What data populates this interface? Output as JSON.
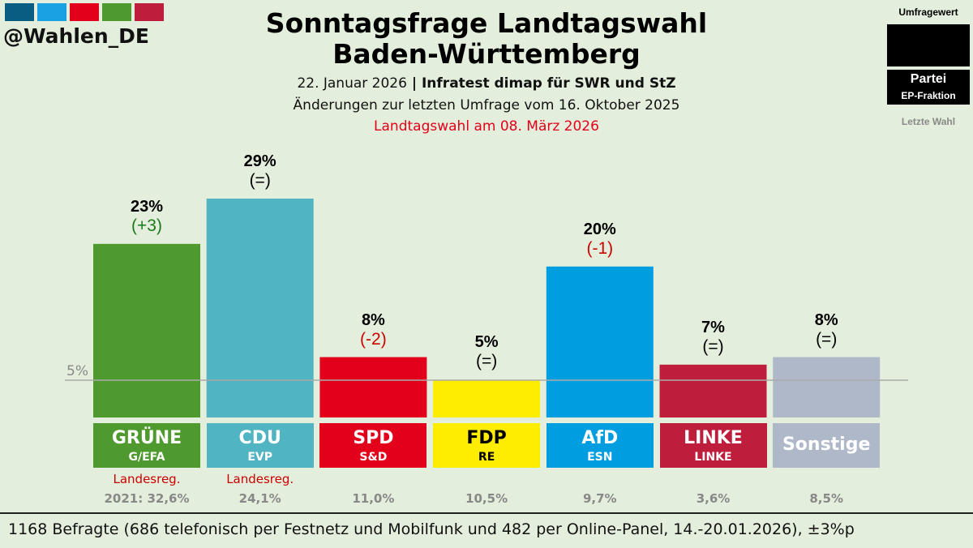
{
  "header": {
    "handle": "@Wahlen_DE",
    "logo_colors": [
      "#0a5d82",
      "#1aa1e3",
      "#e2001a",
      "#4e9a2e",
      "#be1e3c"
    ],
    "title_line1": "Sonntagsfrage Landtagswahl",
    "title_line2": "Baden-Württemberg",
    "date": "22. Januar 2026",
    "separator": " | ",
    "institute": "Infratest dimap für SWR und StZ",
    "changes_note": "Änderungen zur letzten Umfrage vom 16. Oktober 2025",
    "election_note": "Landtagswahl am 08. März 2026"
  },
  "legend": {
    "value_label": "Umfragewert",
    "party_label": "Partei",
    "group_label": "EP-Fraktion",
    "last_label": "Letzte Wahl"
  },
  "chart_data": {
    "type": "bar",
    "ylim": [
      0,
      30
    ],
    "threshold": 5,
    "threshold_label": "5%",
    "categories": [
      "GRÜNE",
      "CDU",
      "SPD",
      "FDP",
      "AfD",
      "LINKE",
      "Sonstige"
    ],
    "groups": [
      "G/EFA",
      "EVP",
      "S&D",
      "RE",
      "ESN",
      "LINKE",
      ""
    ],
    "values": [
      23,
      29,
      8,
      5,
      20,
      7,
      8
    ],
    "value_labels": [
      "23%",
      "29%",
      "8%",
      "5%",
      "20%",
      "7%",
      "8%"
    ],
    "changes": [
      "(+3)",
      "(=)",
      "(-2)",
      "(=)",
      "(-1)",
      "(=)",
      "(=)"
    ],
    "change_colors": [
      "#1a7a1a",
      "#000",
      "#c00",
      "#000",
      "#c00",
      "#000",
      "#000"
    ],
    "colors": [
      "#4e9a2e",
      "#50b4c2",
      "#e2001a",
      "#ffed00",
      "#009ee0",
      "#be1e3c",
      "#aeb8c8"
    ],
    "text_colors": [
      "#fff",
      "#fff",
      "#fff",
      "#000",
      "#fff",
      "#fff",
      "#fff"
    ],
    "government": [
      "Landesreg.",
      "Landesreg.",
      "",
      "",
      "",
      "",
      ""
    ],
    "last_election": [
      "2021: 32,6%",
      "24,1%",
      "11,0%",
      "10,5%",
      "9,7%",
      "3,6%",
      "8,5%"
    ]
  },
  "footer": {
    "text": "1168 Befragte (686 telefonisch per Festnetz und Mobilfunk und 482 per Online-Panel, 14.-20.01.2026), ±3%p"
  }
}
